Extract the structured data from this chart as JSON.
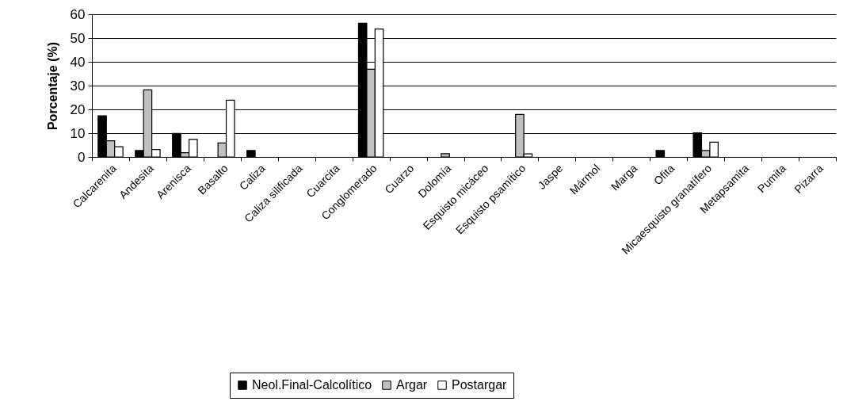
{
  "chart_data": {
    "type": "bar",
    "ylabel": "Porcentaje (%)",
    "categories": [
      "Calcarenita",
      "Andesita",
      "Arenisca",
      "Basalto",
      "Caliza",
      "Caliza silificada",
      "Cuarcita",
      "Conglomerado",
      "Cuarzo",
      "Dolomía",
      "Esquisto micáceo",
      "Esquisto psamítico",
      "Jaspe",
      "Mármol",
      "Marga",
      "Ofita",
      "Micaesquisto granatífero",
      "Metapsamita",
      "Pumita",
      "Pizarra"
    ],
    "series": [
      {
        "name": "Neol.Final-Calcolítico",
        "color": "#000000",
        "values": [
          17.3,
          2.7,
          9.9,
          0,
          2.7,
          0,
          0,
          56.2,
          0,
          0,
          0,
          0,
          0,
          0,
          0,
          2.7,
          10.1,
          0,
          0,
          0
        ]
      },
      {
        "name": "Argar",
        "color": "#c0c0c0",
        "values": [
          6.8,
          28.2,
          1.8,
          5.9,
          0,
          0,
          0,
          36.9,
          0,
          1.4,
          0,
          17.9,
          0,
          0,
          0,
          0,
          2.7,
          0,
          0,
          0
        ]
      },
      {
        "name": "Postargar",
        "color": "#ffffff",
        "values": [
          4.3,
          3.1,
          7.4,
          23.9,
          0,
          0,
          0,
          53.8,
          0,
          0,
          0,
          1.3,
          0,
          0,
          0,
          0,
          6.2,
          0,
          0,
          0
        ]
      }
    ],
    "ylim": [
      0,
      60
    ],
    "yticks": [
      0,
      10,
      20,
      30,
      40,
      50,
      60
    ],
    "grid": "y",
    "legend": "bottom"
  }
}
